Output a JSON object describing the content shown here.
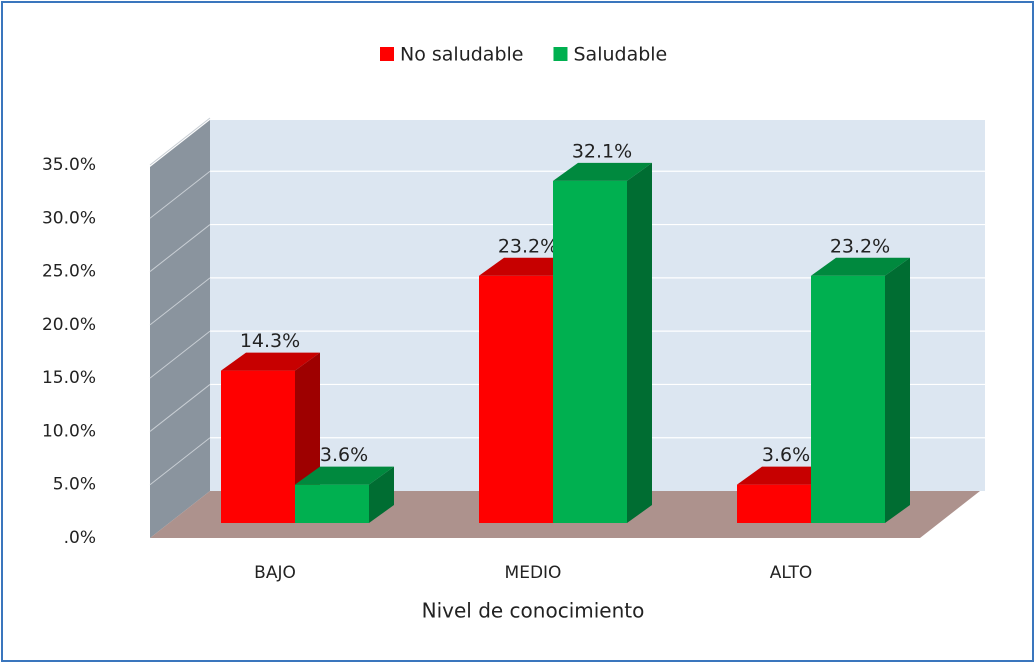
{
  "chart_data": {
    "type": "bar3d",
    "categories": [
      "BAJO",
      "MEDIO",
      "ALTO"
    ],
    "series": [
      {
        "name": "No saludable",
        "color": "#ff0000",
        "values": [
          14.3,
          23.2,
          3.6
        ],
        "value_labels": [
          "14.3%",
          "23.2%",
          "3.6%"
        ]
      },
      {
        "name": "Saludable",
        "color": "#00b050",
        "values": [
          3.6,
          32.1,
          23.2
        ],
        "value_labels": [
          "3.6%",
          "32.1%",
          "23.2%"
        ]
      }
    ],
    "ylim": [
      0,
      35
    ],
    "yticks": [
      {
        "value": 0,
        "label": ".0%"
      },
      {
        "value": 5,
        "label": "5.0%"
      },
      {
        "value": 10,
        "label": "10.0%"
      },
      {
        "value": 15,
        "label": "15.0%"
      },
      {
        "value": 20,
        "label": "20.0%"
      },
      {
        "value": 25,
        "label": "25.0%"
      },
      {
        "value": 30,
        "label": "30.0%"
      },
      {
        "value": 35,
        "label": "35.0%"
      }
    ],
    "xlabel": "Nivel de conocimiento",
    "grid": true,
    "legend": "top"
  }
}
